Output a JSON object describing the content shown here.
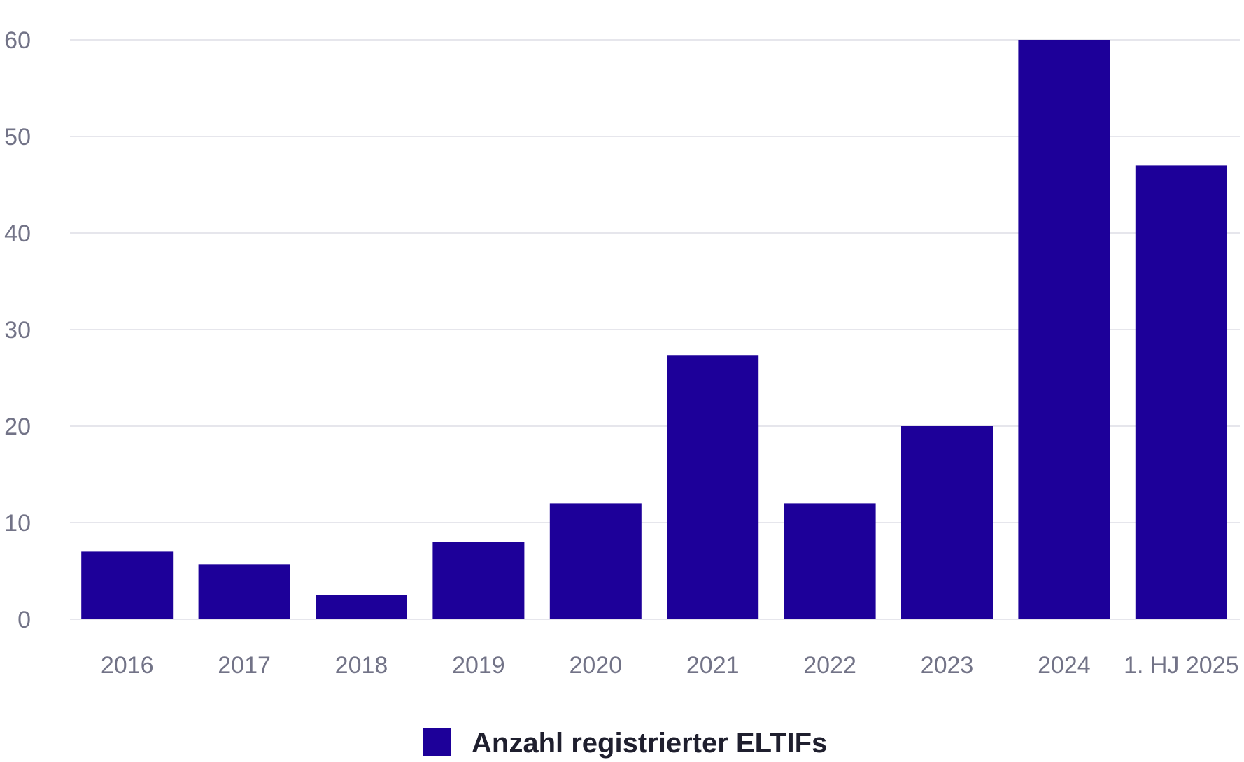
{
  "chart_data": {
    "type": "bar",
    "categories": [
      "2016",
      "2017",
      "2018",
      "2019",
      "2020",
      "2021",
      "2022",
      "2023",
      "2024",
      "1. HJ 2025"
    ],
    "series": [
      {
        "name": "Anzahl registrierter ELTIFs",
        "values": [
          7,
          5.7,
          2.5,
          8,
          12,
          27.3,
          12,
          20,
          60,
          47
        ],
        "color": "#1d0099"
      }
    ],
    "ylim": [
      0,
      60
    ],
    "yticks": [
      "0",
      "10",
      "20",
      "30",
      "40",
      "50",
      "60"
    ],
    "grid": true,
    "legend": "bottom-center"
  }
}
